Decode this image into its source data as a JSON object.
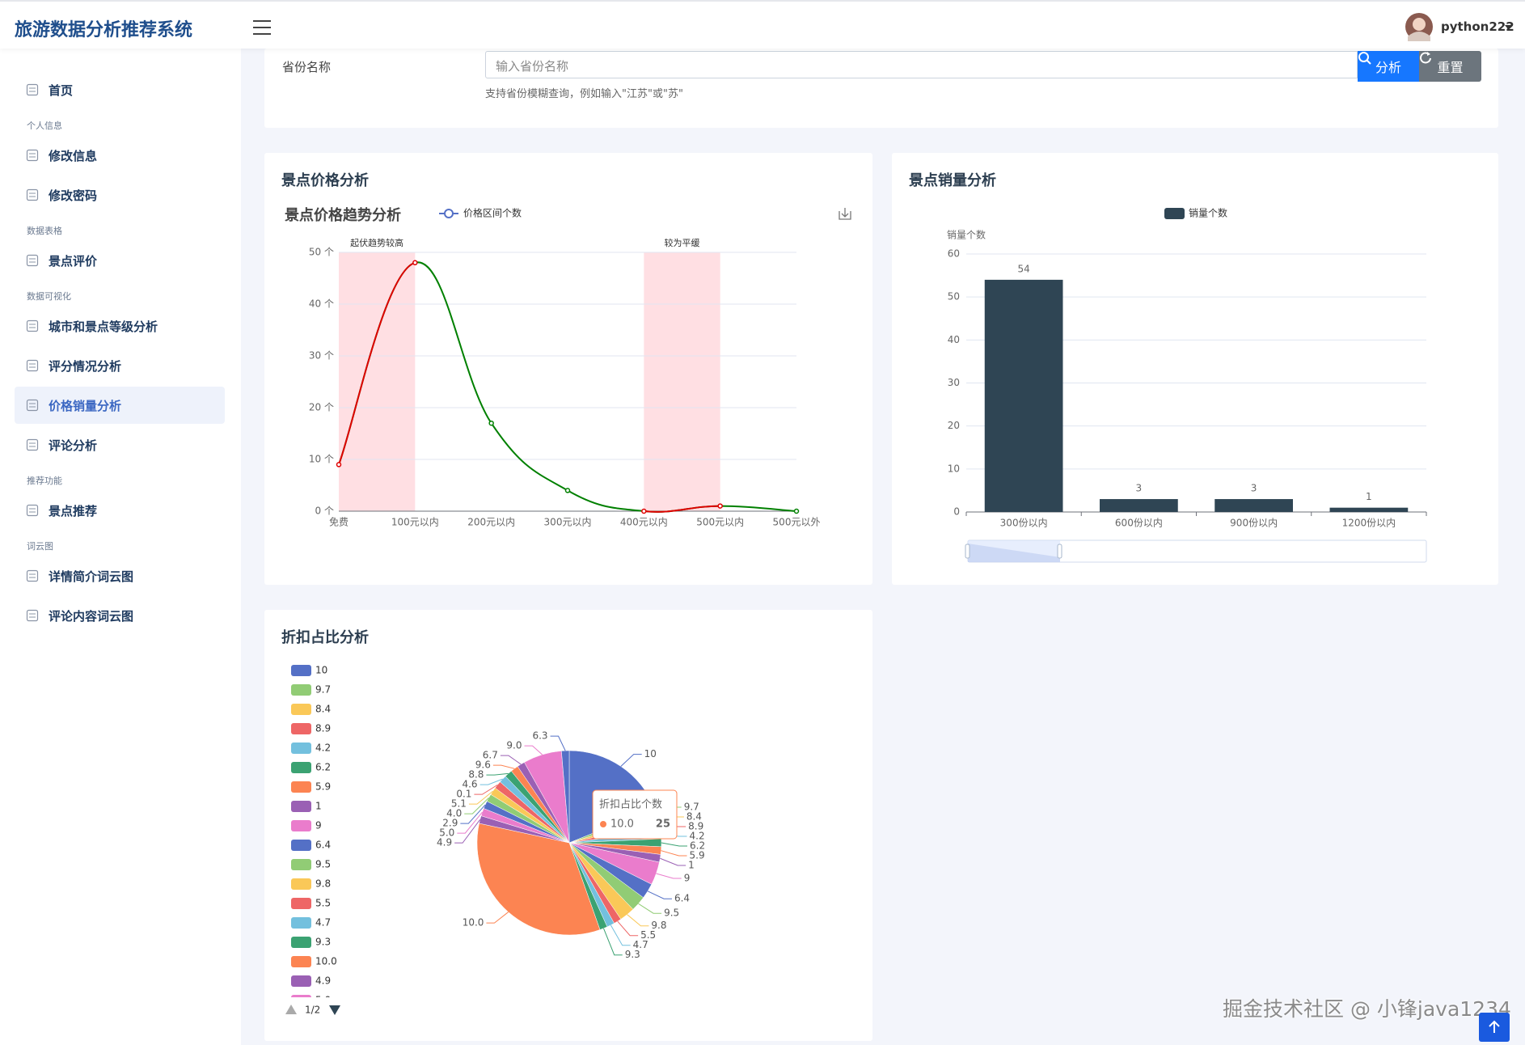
{
  "header": {
    "title": "旅游数据分析推荐系统",
    "user": "python222"
  },
  "sidebar": {
    "active": "价格销量分析",
    "groups": [
      {
        "items": [
          "首页"
        ]
      },
      {
        "label": "个人信息",
        "items": [
          "修改信息",
          "修改密码"
        ]
      },
      {
        "label": "数据表格",
        "items": [
          "景点评价"
        ]
      },
      {
        "label": "数据可视化",
        "items": [
          "城市和景点等级分析",
          "评分情况分析",
          "价格销量分析",
          "评论分析"
        ]
      },
      {
        "label": "推荐功能",
        "items": [
          "景点推荐"
        ]
      },
      {
        "label": "词云图",
        "items": [
          "详情简介词云图",
          "评论内容词云图"
        ]
      }
    ]
  },
  "search": {
    "label": "省份名称",
    "placeholder": "输入省份名称",
    "analyze_button": "分析",
    "reset_button": "重置",
    "hint": "支持省份模糊查询，例如输入\"江苏\"或\"苏\""
  },
  "watermark": "掘金技术社区 @ 小锋java1234",
  "chart_data": [
    {
      "type": "line",
      "panel_title": "景点价格分析",
      "title": "景点价格趋势分析",
      "categories": [
        "免费",
        "100元以内",
        "200元以内",
        "300元以内",
        "400元以内",
        "500元以内",
        "500元以外"
      ],
      "series": [
        {
          "name": "价格区间个数",
          "color": "#008000",
          "values": [
            9,
            48,
            17,
            4,
            0,
            1,
            0
          ]
        }
      ],
      "ylim": [
        0,
        50
      ],
      "yticks": [
        {
          "value": 0,
          "label": "0 个"
        },
        {
          "value": 10,
          "label": "10 个"
        },
        {
          "value": 20,
          "label": "20 个"
        },
        {
          "value": 30,
          "label": "30 个"
        },
        {
          "value": 40,
          "label": "40 个"
        },
        {
          "value": 50,
          "label": "50 个"
        }
      ],
      "grid": true,
      "mark_areas": [
        {
          "label": "起伏趋势较高",
          "from": "免费",
          "to": "100元以内",
          "color": "#ffdfe3",
          "line_color": "#e00000"
        },
        {
          "label": "较为平缓",
          "from": "400元以内",
          "to": "500元以内",
          "color": "#ffdfe3",
          "line_color": "#e00000"
        }
      ]
    },
    {
      "type": "bar",
      "panel_title": "景点销量分析",
      "y_axis_label": "销量个数",
      "categories": [
        "300份以内",
        "600份以内",
        "900份以内",
        "1200份以内"
      ],
      "series": [
        {
          "name": "销量个数",
          "color": "#2f4554",
          "values": [
            54,
            3,
            3,
            1
          ]
        }
      ],
      "ylim": [
        0,
        60
      ],
      "yticks": [
        0,
        10,
        20,
        30,
        40,
        50,
        60
      ],
      "grid": true,
      "data_labels": true
    },
    {
      "type": "pie",
      "panel_title": "折扣占比分析",
      "categories": [
        "10",
        "9.7",
        "8.4",
        "8.9",
        "4.2",
        "6.2",
        "5.9",
        "1",
        "9",
        "6.4",
        "9.5",
        "9.8",
        "5.5",
        "4.7",
        "9.3",
        "10.0",
        "4.9",
        "5.0",
        "2.9",
        "4.0",
        "5.1",
        "0.1",
        "4.6",
        "8.8",
        "9.6",
        "6.7",
        "9.0",
        "6.3"
      ],
      "series": [
        {
          "name": "折扣占比个数",
          "values": [
            14,
            1,
            1,
            1,
            1,
            1,
            1,
            1,
            3,
            2,
            2,
            2,
            1,
            1,
            1,
            25,
            1,
            1,
            1,
            1,
            1,
            1,
            1,
            1,
            1,
            1,
            5,
            1
          ]
        }
      ],
      "colors": [
        "#5470c6",
        "#91cc75",
        "#fac858",
        "#ee6666",
        "#73c0de",
        "#3ba272",
        "#fc8452",
        "#9a60b4",
        "#ea7ccc"
      ],
      "legend_page": "1/2",
      "tooltip": {
        "category": "10.0"
      }
    }
  ]
}
